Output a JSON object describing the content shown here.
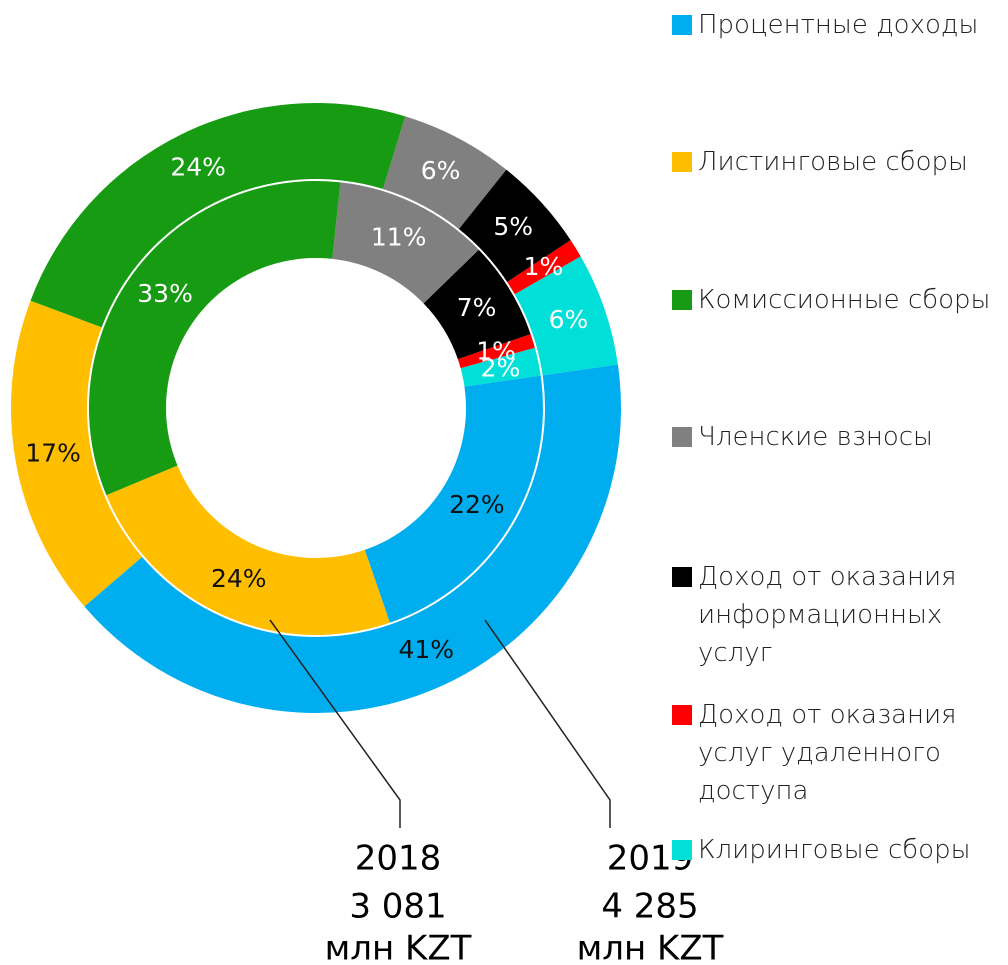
{
  "chart_data": {
    "type": "pie",
    "categories": [
      "Процентные доходы",
      "Листинговые сборы",
      "Комиссионные сборы",
      "Членские взносы",
      "Доход от оказания информационных услуг",
      "Доход от оказания услуг удаленного доступа",
      "Клиринговые сборы"
    ],
    "colors": [
      "#00aeef",
      "#ffbe00",
      "#169b12",
      "#808080",
      "#000000",
      "#ff0000",
      "#00e0d8"
    ],
    "label_colors": [
      "#111111",
      "#111111",
      "#ffffff",
      "#ffffff",
      "#ffffff",
      "#ffffff",
      "#ffffff"
    ],
    "series": [
      {
        "name": "2018",
        "total": "3 081",
        "unit": "млн KZT",
        "values": [
          22,
          24,
          33,
          11,
          7,
          1,
          2
        ],
        "value_labels": [
          "22%",
          "24%",
          "33%",
          "11%",
          "7%",
          "1%",
          "2%"
        ]
      },
      {
        "name": "2019",
        "total": "4 285",
        "unit": "млн KZT",
        "values": [
          41,
          17,
          24,
          6,
          5,
          1,
          6
        ],
        "value_labels": [
          "41%",
          "17%",
          "24%",
          "6%",
          "5%",
          "1%",
          "6%"
        ]
      }
    ]
  }
}
